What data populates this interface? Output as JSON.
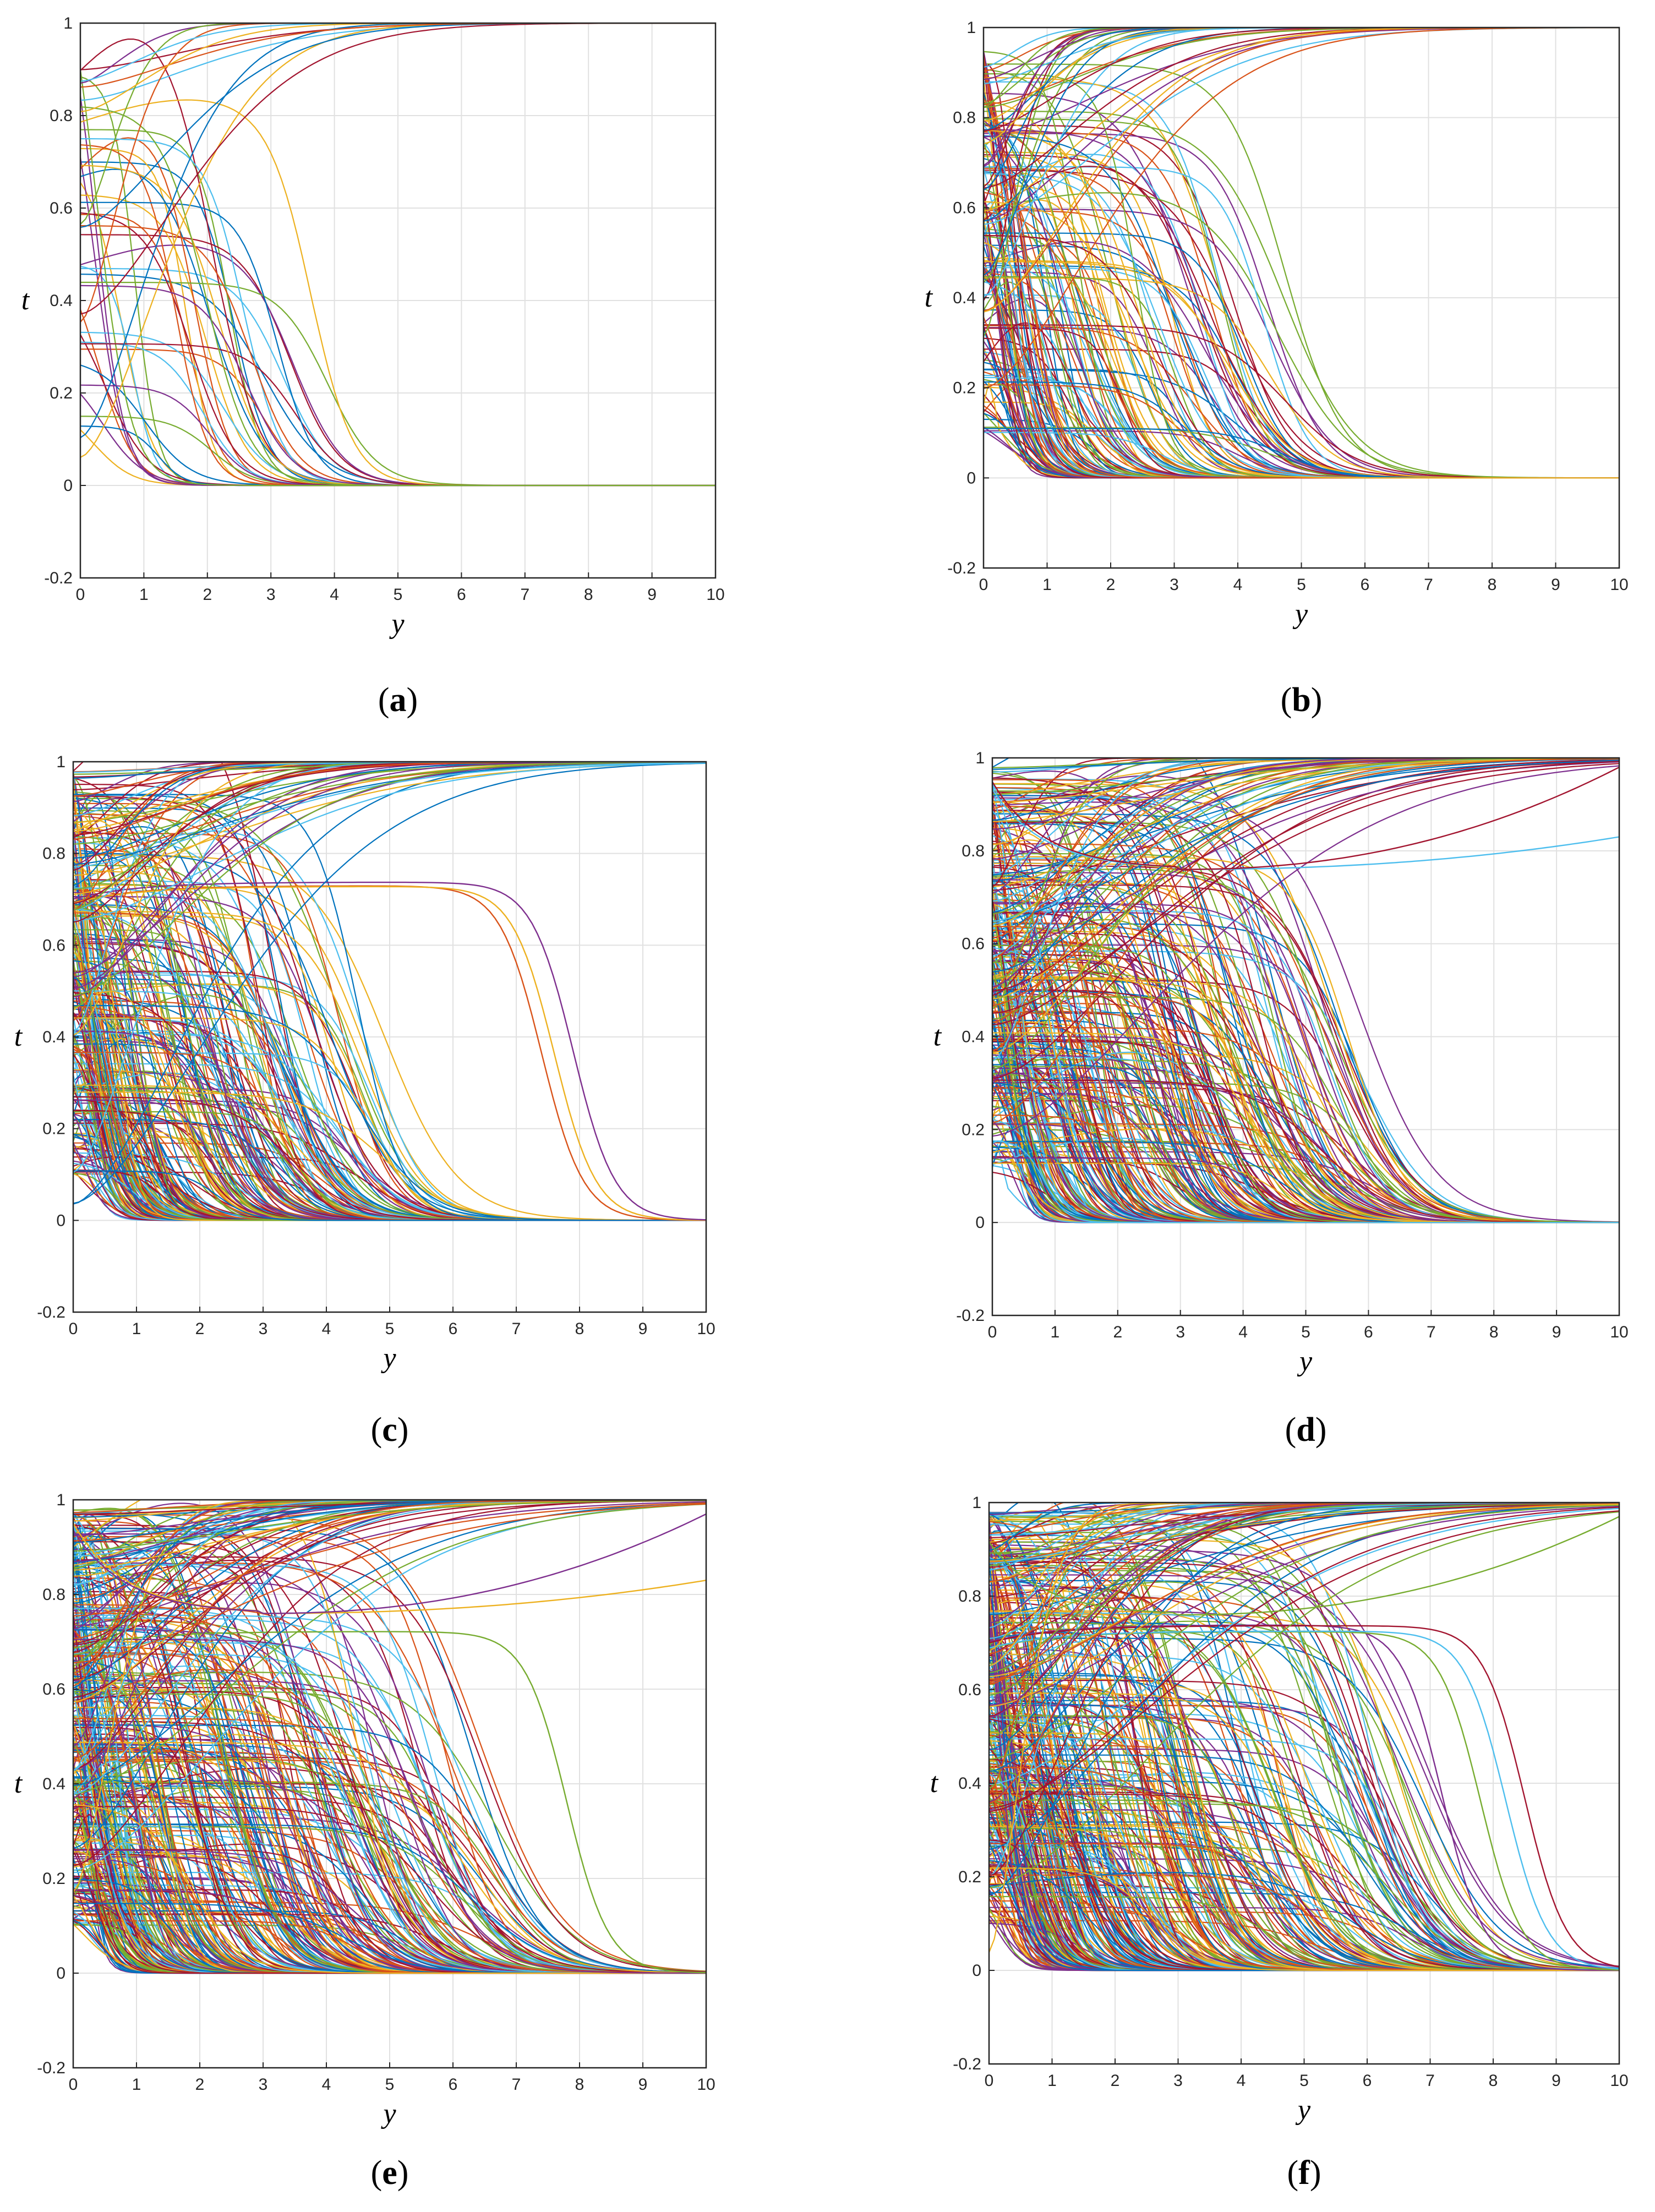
{
  "figure": {
    "panels": [
      {
        "caption": "a",
        "chart_data": {
          "type": "line",
          "xlabel": "y",
          "ylabel": "t",
          "xlim": [
            0,
            10
          ],
          "ylim": [
            -0.2,
            1
          ],
          "xticks": [
            "0",
            "1",
            "2",
            "3",
            "4",
            "5",
            "6",
            "7",
            "8",
            "9",
            "10"
          ],
          "yticks": [
            "-0.2",
            "0",
            "0.2",
            "0.4",
            "0.6",
            "0.8",
            "1"
          ],
          "grid": true,
          "families": {
            "velocity_profiles": {
              "shape": "sigmoid decay from f(0) to 0",
              "count": 40,
              "decay_y_range": [
                0.2,
                4.0
              ],
              "start_range": [
                0.1,
                0.9
              ]
            },
            "temperature_profiles": {
              "shape": "rise from t(0) to 1",
              "count": 12,
              "start_range": [
                0.0,
                0.9
              ],
              "saturation_y_range": [
                1.5,
                6.0
              ]
            }
          }
        }
      },
      {
        "caption": "b",
        "chart_data": {
          "type": "line",
          "xlabel": "y",
          "ylabel": "t",
          "xlim": [
            0,
            10
          ],
          "ylim": [
            -0.2,
            1
          ],
          "xticks": [
            "0",
            "1",
            "2",
            "3",
            "4",
            "5",
            "6",
            "7",
            "8",
            "9",
            "10"
          ],
          "yticks": [
            "-0.2",
            "0",
            "0.2",
            "0.4",
            "0.6",
            "0.8",
            "1"
          ],
          "grid": true,
          "families": {
            "velocity_profiles": {
              "shape": "sigmoid decay from f(0) to 0",
              "count": 150,
              "decay_y_range": [
                0.2,
                4.9
              ],
              "start_range": [
                0.1,
                0.95
              ]
            },
            "temperature_profiles": {
              "shape": "rise from t(0) to 1",
              "count": 30,
              "start_range": [
                0.0,
                0.95
              ],
              "saturation_y_range": [
                1.5,
                6.5
              ]
            }
          }
        }
      },
      {
        "caption": "c",
        "chart_data": {
          "type": "line",
          "xlabel": "y",
          "ylabel": "t",
          "xlim": [
            0,
            10
          ],
          "ylim": [
            -0.2,
            1
          ],
          "xticks": [
            "0",
            "1",
            "2",
            "3",
            "4",
            "5",
            "6",
            "7",
            "8",
            "9",
            "10"
          ],
          "yticks": [
            "-0.2",
            "0",
            "0.2",
            "0.4",
            "0.6",
            "0.8",
            "1"
          ],
          "grid": true,
          "families": {
            "velocity_profiles": {
              "shape": "sigmoid decay from f(0) to 0",
              "count": 260,
              "decay_y_range": [
                0.1,
                5.0
              ],
              "start_range": [
                0.1,
                0.98
              ],
              "outliers_decay_y": [
                7.4,
                7.6,
                7.9
              ]
            },
            "temperature_profiles": {
              "shape": "rise from t(0) to 1",
              "count": 45,
              "start_range": [
                0.0,
                0.98
              ],
              "saturation_y_range": [
                1.5,
                9.0
              ]
            }
          }
        }
      },
      {
        "caption": "d",
        "chart_data": {
          "type": "line",
          "xlabel": "y",
          "ylabel": "t",
          "xlim": [
            0,
            10
          ],
          "ylim": [
            -0.2,
            1
          ],
          "xticks": [
            "0",
            "1",
            "2",
            "3",
            "4",
            "5",
            "6",
            "7",
            "8",
            "9",
            "10"
          ],
          "yticks": [
            "-0.2",
            "0",
            "0.2",
            "0.4",
            "0.6",
            "0.8",
            "1"
          ],
          "grid": true,
          "families": {
            "velocity_profiles": {
              "shape": "sigmoid decay from f(0) to 0",
              "count": 300,
              "decay_y_range": [
                0.1,
                6.1
              ],
              "start_range": [
                0.1,
                0.98
              ]
            },
            "temperature_profiles": {
              "shape": "rise from t(0) to 1",
              "count": 55,
              "start_range": [
                0.0,
                0.98
              ],
              "saturation_y_range": [
                1.5,
                10
              ],
              "end_values_at_y10": [
                0.83,
                0.98
              ]
            }
          }
        }
      },
      {
        "caption": "e",
        "chart_data": {
          "type": "line",
          "xlabel": "y",
          "ylabel": "t",
          "xlim": [
            0,
            10
          ],
          "ylim": [
            -0.2,
            1
          ],
          "xticks": [
            "0",
            "1",
            "2",
            "3",
            "4",
            "5",
            "6",
            "7",
            "8",
            "9",
            "10"
          ],
          "yticks": [
            "-0.2",
            "0",
            "0.2",
            "0.4",
            "0.6",
            "0.8",
            "1"
          ],
          "grid": true,
          "families": {
            "velocity_profiles": {
              "shape": "sigmoid decay from f(0) to 0",
              "count": 340,
              "decay_y_range": [
                0.1,
                6.7
              ],
              "start_range": [
                0.1,
                0.98
              ],
              "outliers_decay_y": [
                7.8
              ]
            },
            "temperature_profiles": {
              "shape": "rise from t(0) to 1",
              "count": 60,
              "start_range": [
                0.0,
                0.98
              ],
              "saturation_y_range": [
                1.5,
                10
              ],
              "end_values_at_y10": [
                0.83,
                0.97
              ]
            }
          }
        }
      },
      {
        "caption": "f",
        "chart_data": {
          "type": "line",
          "xlabel": "y",
          "ylabel": "t",
          "xlim": [
            0,
            10
          ],
          "ylim": [
            -0.2,
            1
          ],
          "xticks": [
            "0",
            "1",
            "2",
            "3",
            "4",
            "5",
            "6",
            "7",
            "8",
            "9",
            "10"
          ],
          "yticks": [
            "-0.2",
            "0",
            "0.2",
            "0.4",
            "0.6",
            "0.8",
            "1"
          ],
          "grid": true,
          "families": {
            "velocity_profiles": {
              "shape": "sigmoid decay from f(0) to 0",
              "count": 360,
              "decay_y_range": [
                0.1,
                7.0
              ],
              "start_range": [
                0.1,
                0.98
              ],
              "outliers_decay_y": [
                7.2,
                7.8,
                8.2,
                8.5
              ]
            },
            "temperature_profiles": {
              "shape": "rise from t(0) to 1",
              "count": 60,
              "start_range": [
                0.0,
                0.98
              ],
              "saturation_y_range": [
                1.5,
                10
              ],
              "end_values_at_y10": [
                0.97
              ]
            }
          }
        }
      }
    ],
    "palette": [
      "#0072BD",
      "#D95319",
      "#EDB120",
      "#7E2F8E",
      "#77AC30",
      "#4DBEEE",
      "#A2142F"
    ]
  }
}
